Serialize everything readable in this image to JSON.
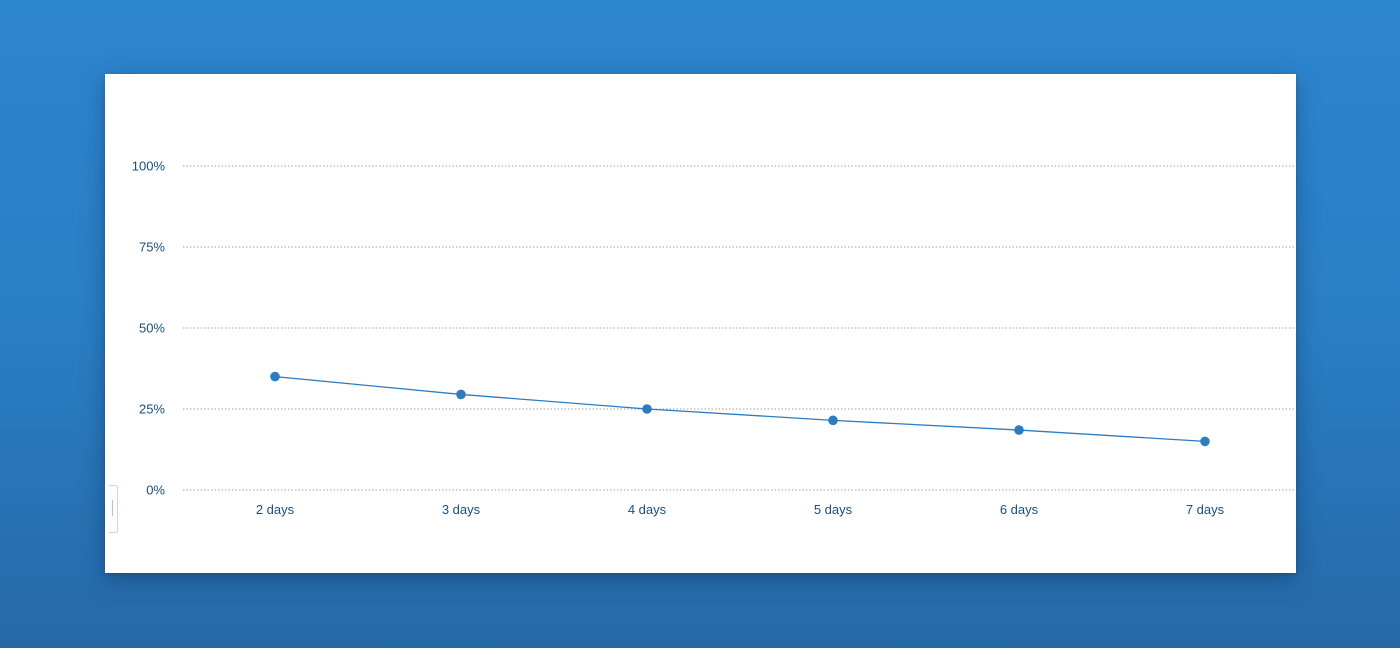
{
  "chart_data": {
    "type": "line",
    "categories": [
      "2 days",
      "3 days",
      "4 days",
      "5 days",
      "6 days",
      "7 days"
    ],
    "series": [
      {
        "values": [
          35,
          29.5,
          25,
          21.5,
          18.5,
          15
        ]
      }
    ],
    "y_ticks": [
      "0%",
      "25%",
      "50%",
      "75%",
      "100%"
    ],
    "ylim": [
      0,
      100
    ],
    "grid": true,
    "line_color": "#2d7cc1",
    "marker_color": "#2d7cc1",
    "gridline_color": "#9aa4ad",
    "tick_label_color": "#1b4f7e"
  },
  "side_tab_icon": "collapse-tab-icon"
}
